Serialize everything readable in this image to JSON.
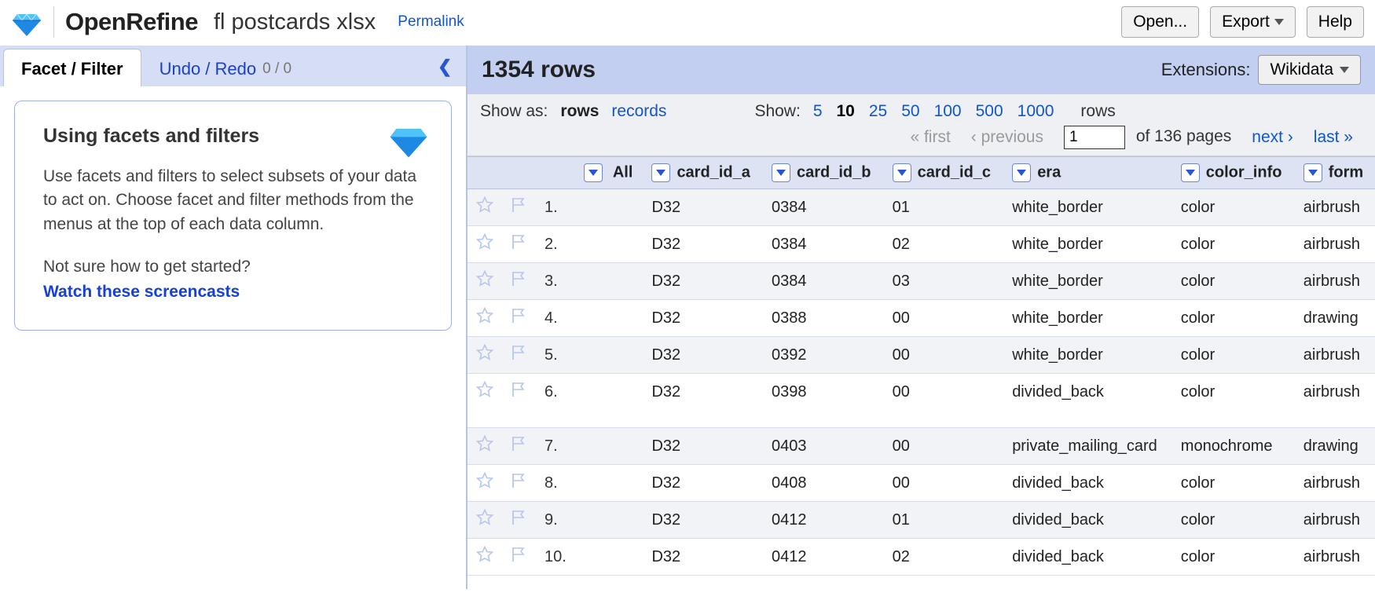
{
  "header": {
    "app_name": "OpenRefine",
    "project_name": "fl postcards xlsx",
    "permalink_label": "Permalink",
    "open_label": "Open...",
    "export_label": "Export",
    "help_label": "Help"
  },
  "colors": {
    "accent": "#2a54d6",
    "panel_bg": "#d6def5",
    "header_bg": "#c3cff0",
    "table_header_bg": "#dde3f3",
    "row_alt_bg": "#f2f3f6",
    "link": "#1155cc",
    "diamond_top": "#4fc3f7",
    "diamond_bottom": "#1e88e5"
  },
  "left": {
    "tab_facet": "Facet / Filter",
    "tab_undo": "Undo / Redo",
    "undo_count": "0 / 0",
    "info_title": "Using facets and filters",
    "info_p1": "Use facets and filters to select subsets of your data to act on. Choose facet and filter methods from the menus at the top of each data column.",
    "info_p2": "Not sure how to get started?",
    "info_link": "Watch these screencasts"
  },
  "summary": {
    "row_count_text": "1354 rows",
    "extensions_label": "Extensions:",
    "extension_selected": "Wikidata"
  },
  "view": {
    "show_as_label": "Show as:",
    "mode_rows": "rows",
    "mode_records": "records",
    "show_label": "Show:",
    "page_sizes": [
      "5",
      "10",
      "25",
      "50",
      "100",
      "500",
      "1000"
    ],
    "page_size_selected": "10",
    "rows_word": "rows",
    "first_label": "« first",
    "prev_label": "‹ previous",
    "page_input_value": "1",
    "of_pages": "of 136 pages",
    "next_label": "next ›",
    "last_label": "last »"
  },
  "table": {
    "all_label": "All",
    "columns": [
      "card_id_a",
      "card_id_b",
      "card_id_c",
      "era",
      "color_info",
      "form"
    ],
    "rows": [
      {
        "n": "1.",
        "cells": [
          "D32",
          "0384",
          "01",
          "white_border",
          "color",
          "airbrush"
        ]
      },
      {
        "n": "2.",
        "cells": [
          "D32",
          "0384",
          "02",
          "white_border",
          "color",
          "airbrush"
        ]
      },
      {
        "n": "3.",
        "cells": [
          "D32",
          "0384",
          "03",
          "white_border",
          "color",
          "airbrush"
        ]
      },
      {
        "n": "4.",
        "cells": [
          "D32",
          "0388",
          "00",
          "white_border",
          "color",
          "drawing"
        ]
      },
      {
        "n": "5.",
        "cells": [
          "D32",
          "0392",
          "00",
          "white_border",
          "color",
          "airbrush"
        ]
      },
      {
        "n": "6.",
        "cells": [
          "D32",
          "0398",
          "00",
          "divided_back",
          "color",
          "airbrush"
        ],
        "tall": true
      },
      {
        "n": "7.",
        "cells": [
          "D32",
          "0403",
          "00",
          "private_mailing_card",
          "monochrome",
          "drawing"
        ]
      },
      {
        "n": "8.",
        "cells": [
          "D32",
          "0408",
          "00",
          "divided_back",
          "color",
          "airbrush"
        ]
      },
      {
        "n": "9.",
        "cells": [
          "D32",
          "0412",
          "01",
          "divided_back",
          "color",
          "airbrush"
        ]
      },
      {
        "n": "10.",
        "cells": [
          "D32",
          "0412",
          "02",
          "divided_back",
          "color",
          "airbrush"
        ]
      }
    ]
  }
}
